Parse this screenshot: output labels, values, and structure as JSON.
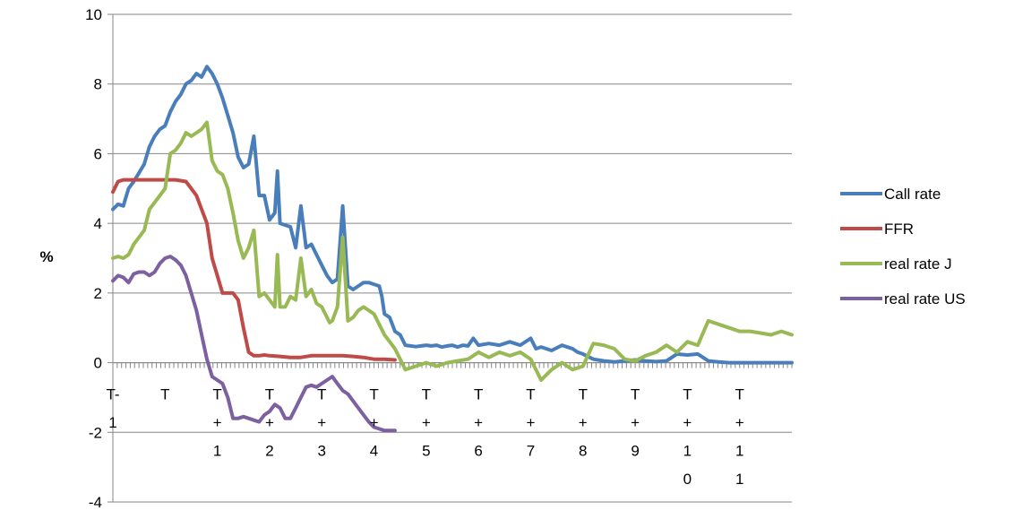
{
  "chart_data": {
    "type": "line",
    "ylabel": "%",
    "ylim": [
      -4,
      10
    ],
    "yticks": [
      -4,
      -2,
      0,
      2,
      4,
      6,
      8,
      10
    ],
    "x_range": [
      0,
      13
    ],
    "x_tick_labels": [
      {
        "pos": 0,
        "lines": [
          "T-",
          "1"
        ]
      },
      {
        "pos": 1,
        "lines": [
          "T"
        ]
      },
      {
        "pos": 2,
        "lines": [
          "T",
          "+",
          "1"
        ]
      },
      {
        "pos": 3,
        "lines": [
          "T",
          "+",
          "2"
        ]
      },
      {
        "pos": 4,
        "lines": [
          "T",
          "+",
          "3"
        ]
      },
      {
        "pos": 5,
        "lines": [
          "T",
          "+",
          "4"
        ]
      },
      {
        "pos": 6,
        "lines": [
          "T",
          "+",
          "5"
        ]
      },
      {
        "pos": 7,
        "lines": [
          "T",
          "+",
          "6"
        ]
      },
      {
        "pos": 8,
        "lines": [
          "T",
          "+",
          "7"
        ]
      },
      {
        "pos": 9,
        "lines": [
          "T",
          "+",
          "8"
        ]
      },
      {
        "pos": 10,
        "lines": [
          "T",
          "+",
          "9"
        ]
      },
      {
        "pos": 11,
        "lines": [
          "T",
          "+",
          "1",
          "0"
        ]
      },
      {
        "pos": 12,
        "lines": [
          "T",
          "+",
          "1",
          "1"
        ]
      }
    ],
    "grid": "horizontal",
    "legend_position": "right",
    "series": [
      {
        "name": "Call rate",
        "color": "#4a7ebb",
        "x": [
          0,
          0.1,
          0.2,
          0.3,
          0.4,
          0.5,
          0.6,
          0.7,
          0.8,
          0.9,
          1.0,
          1.1,
          1.2,
          1.3,
          1.4,
          1.5,
          1.6,
          1.7,
          1.8,
          1.9,
          2.0,
          2.1,
          2.2,
          2.3,
          2.4,
          2.5,
          2.6,
          2.7,
          2.8,
          2.9,
          3.0,
          3.1,
          3.15,
          3.2,
          3.3,
          3.4,
          3.5,
          3.6,
          3.7,
          3.8,
          3.9,
          4.0,
          4.1,
          4.15,
          4.2,
          4.3,
          4.4,
          4.5,
          4.6,
          4.7,
          4.8,
          4.9,
          5.0,
          5.1,
          5.15,
          5.2,
          5.3,
          5.4,
          5.5,
          5.6,
          5.7,
          5.8,
          5.9,
          6.0,
          6.1,
          6.2,
          6.3,
          6.4,
          6.5,
          6.6,
          6.7,
          6.8,
          6.9,
          7.0,
          7.2,
          7.4,
          7.6,
          7.8,
          8.0,
          8.1,
          8.2,
          8.4,
          8.6,
          8.8,
          8.9,
          9.0,
          9.2,
          9.4,
          9.6,
          9.8,
          10.0,
          10.2,
          10.4,
          10.6,
          10.8,
          11.0,
          11.2,
          11.4,
          11.6,
          11.8,
          12.0,
          12.2,
          12.4,
          12.6,
          12.8,
          13.0
        ],
        "values": [
          4.4,
          4.55,
          4.5,
          5.0,
          5.2,
          5.45,
          5.7,
          6.2,
          6.5,
          6.7,
          6.8,
          7.2,
          7.5,
          7.7,
          8.0,
          8.1,
          8.3,
          8.2,
          8.5,
          8.3,
          8.0,
          7.6,
          7.1,
          6.6,
          5.9,
          5.6,
          5.7,
          6.5,
          4.8,
          4.8,
          4.1,
          4.3,
          5.5,
          4.0,
          3.95,
          3.9,
          3.3,
          4.5,
          3.3,
          3.4,
          3.1,
          2.8,
          2.5,
          2.4,
          2.3,
          2.4,
          4.5,
          2.2,
          2.1,
          2.2,
          2.3,
          2.3,
          2.25,
          2.2,
          1.9,
          1.4,
          1.3,
          0.9,
          0.8,
          0.5,
          0.48,
          0.46,
          0.48,
          0.5,
          0.48,
          0.5,
          0.45,
          0.48,
          0.5,
          0.45,
          0.5,
          0.48,
          0.7,
          0.5,
          0.55,
          0.5,
          0.6,
          0.5,
          0.7,
          0.4,
          0.45,
          0.35,
          0.5,
          0.4,
          0.3,
          0.25,
          0.1,
          0.05,
          0.02,
          0.05,
          0.08,
          0.05,
          0.03,
          0.05,
          0.25,
          0.22,
          0.25,
          0.05,
          0.02,
          0.0,
          0.0,
          0.0,
          0.0,
          0.0,
          0.0,
          0.0
        ]
      },
      {
        "name": "FFR",
        "color": "#be4b48",
        "x": [
          0,
          0.1,
          0.2,
          0.4,
          0.6,
          0.8,
          1.0,
          1.2,
          1.4,
          1.5,
          1.6,
          1.7,
          1.8,
          1.9,
          2.0,
          2.1,
          2.2,
          2.3,
          2.4,
          2.5,
          2.6,
          2.7,
          2.8,
          2.9,
          3.0,
          3.2,
          3.4,
          3.6,
          3.8,
          4.0,
          4.2,
          4.4,
          4.6,
          4.8,
          5.0,
          5.2,
          5.4
        ],
        "values": [
          4.9,
          5.2,
          5.25,
          5.25,
          5.25,
          5.25,
          5.25,
          5.25,
          5.2,
          5.0,
          4.8,
          4.4,
          4.0,
          3.0,
          2.5,
          2.0,
          2.0,
          2.0,
          1.8,
          1.0,
          0.3,
          0.2,
          0.2,
          0.22,
          0.2,
          0.18,
          0.15,
          0.15,
          0.2,
          0.2,
          0.2,
          0.2,
          0.18,
          0.15,
          0.1,
          0.1,
          0.08
        ]
      },
      {
        "name": "real rate J",
        "color": "#98b954",
        "x": [
          0,
          0.1,
          0.2,
          0.3,
          0.4,
          0.5,
          0.6,
          0.7,
          0.8,
          0.9,
          1.0,
          1.1,
          1.2,
          1.3,
          1.4,
          1.5,
          1.6,
          1.7,
          1.8,
          1.9,
          2.0,
          2.1,
          2.2,
          2.3,
          2.4,
          2.5,
          2.6,
          2.7,
          2.8,
          2.9,
          3.0,
          3.1,
          3.15,
          3.2,
          3.3,
          3.4,
          3.5,
          3.6,
          3.7,
          3.8,
          3.9,
          4.0,
          4.1,
          4.15,
          4.2,
          4.3,
          4.4,
          4.5,
          4.6,
          4.7,
          4.8,
          4.9,
          5.0,
          5.2,
          5.4,
          5.6,
          5.8,
          6.0,
          6.2,
          6.4,
          6.6,
          6.8,
          7.0,
          7.2,
          7.4,
          7.6,
          7.8,
          8.0,
          8.2,
          8.4,
          8.6,
          8.8,
          9.0,
          9.2,
          9.4,
          9.6,
          9.8,
          10.0,
          10.2,
          10.4,
          10.6,
          10.8,
          11.0,
          11.2,
          11.4,
          11.6,
          11.8,
          12.0,
          12.2,
          12.4,
          12.6,
          12.8,
          13.0
        ],
        "values": [
          3.0,
          3.05,
          3.0,
          3.1,
          3.4,
          3.6,
          3.8,
          4.4,
          4.6,
          4.8,
          5.0,
          6.0,
          6.1,
          6.3,
          6.6,
          6.5,
          6.6,
          6.7,
          6.9,
          5.8,
          5.5,
          5.4,
          5.0,
          4.3,
          3.5,
          3.0,
          3.3,
          3.8,
          1.9,
          2.0,
          1.8,
          1.6,
          3.1,
          1.6,
          1.6,
          1.9,
          1.8,
          3.0,
          1.9,
          2.1,
          1.7,
          1.6,
          1.3,
          1.15,
          1.2,
          1.6,
          3.6,
          1.2,
          1.3,
          1.5,
          1.6,
          1.5,
          1.4,
          0.8,
          0.4,
          -0.2,
          -0.1,
          0.0,
          -0.1,
          0.0,
          0.05,
          0.1,
          0.3,
          0.15,
          0.3,
          0.2,
          0.3,
          0.1,
          -0.5,
          -0.2,
          0.0,
          -0.2,
          -0.1,
          0.55,
          0.5,
          0.4,
          0.1,
          0.05,
          0.2,
          0.3,
          0.5,
          0.3,
          0.6,
          0.5,
          1.2,
          1.1,
          1.0,
          0.9,
          0.9,
          0.85,
          0.8,
          0.9,
          0.8
        ]
      },
      {
        "name": "real rate US",
        "color": "#7d60a0",
        "x": [
          0,
          0.1,
          0.2,
          0.3,
          0.4,
          0.5,
          0.6,
          0.7,
          0.8,
          0.9,
          1.0,
          1.1,
          1.2,
          1.3,
          1.4,
          1.5,
          1.6,
          1.7,
          1.8,
          1.9,
          2.0,
          2.1,
          2.2,
          2.3,
          2.4,
          2.5,
          2.6,
          2.7,
          2.8,
          2.9,
          3.0,
          3.1,
          3.2,
          3.3,
          3.4,
          3.5,
          3.6,
          3.7,
          3.8,
          3.9,
          4.0,
          4.1,
          4.2,
          4.3,
          4.4,
          4.5,
          4.6,
          4.7,
          4.8,
          4.9,
          5.0,
          5.1,
          5.2,
          5.3,
          5.4
        ],
        "values": [
          2.35,
          2.5,
          2.45,
          2.3,
          2.55,
          2.6,
          2.6,
          2.5,
          2.6,
          2.85,
          3.0,
          3.05,
          2.95,
          2.8,
          2.5,
          2.0,
          1.5,
          0.8,
          0.1,
          -0.4,
          -0.5,
          -0.6,
          -1.0,
          -1.6,
          -1.6,
          -1.55,
          -1.6,
          -1.65,
          -1.7,
          -1.5,
          -1.4,
          -1.2,
          -1.3,
          -1.6,
          -1.6,
          -1.3,
          -1.0,
          -0.7,
          -0.65,
          -0.7,
          -0.6,
          -0.5,
          -0.4,
          -0.6,
          -0.8,
          -0.9,
          -1.1,
          -1.3,
          -1.5,
          -1.7,
          -1.85,
          -1.9,
          -1.95,
          -1.95,
          -1.95
        ]
      }
    ]
  }
}
